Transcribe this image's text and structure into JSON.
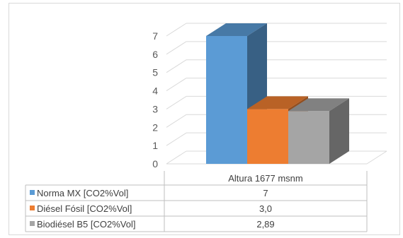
{
  "chart_data": {
    "type": "bar",
    "style": "3d-column-with-data-table",
    "categories": [
      "Altura 1677 msnm"
    ],
    "series": [
      {
        "name": "Norma MX [CO2%Vol]",
        "values": [
          7
        ],
        "label": "7",
        "color": "#5b9bd5"
      },
      {
        "name": "Diésel Fósil [CO2%Vol]",
        "values": [
          3.0
        ],
        "label": "3,0",
        "color": "#ed7d31"
      },
      {
        "name": "Biodiésel B5 [CO2%Vol]",
        "values": [
          2.89
        ],
        "label": "2,89",
        "color": "#a5a5a5"
      }
    ],
    "y_ticks": [
      "0",
      "1",
      "2",
      "3",
      "4",
      "5",
      "6",
      "7"
    ],
    "ylim": [
      0,
      7
    ],
    "grid": true,
    "legend": "data-table-left"
  }
}
